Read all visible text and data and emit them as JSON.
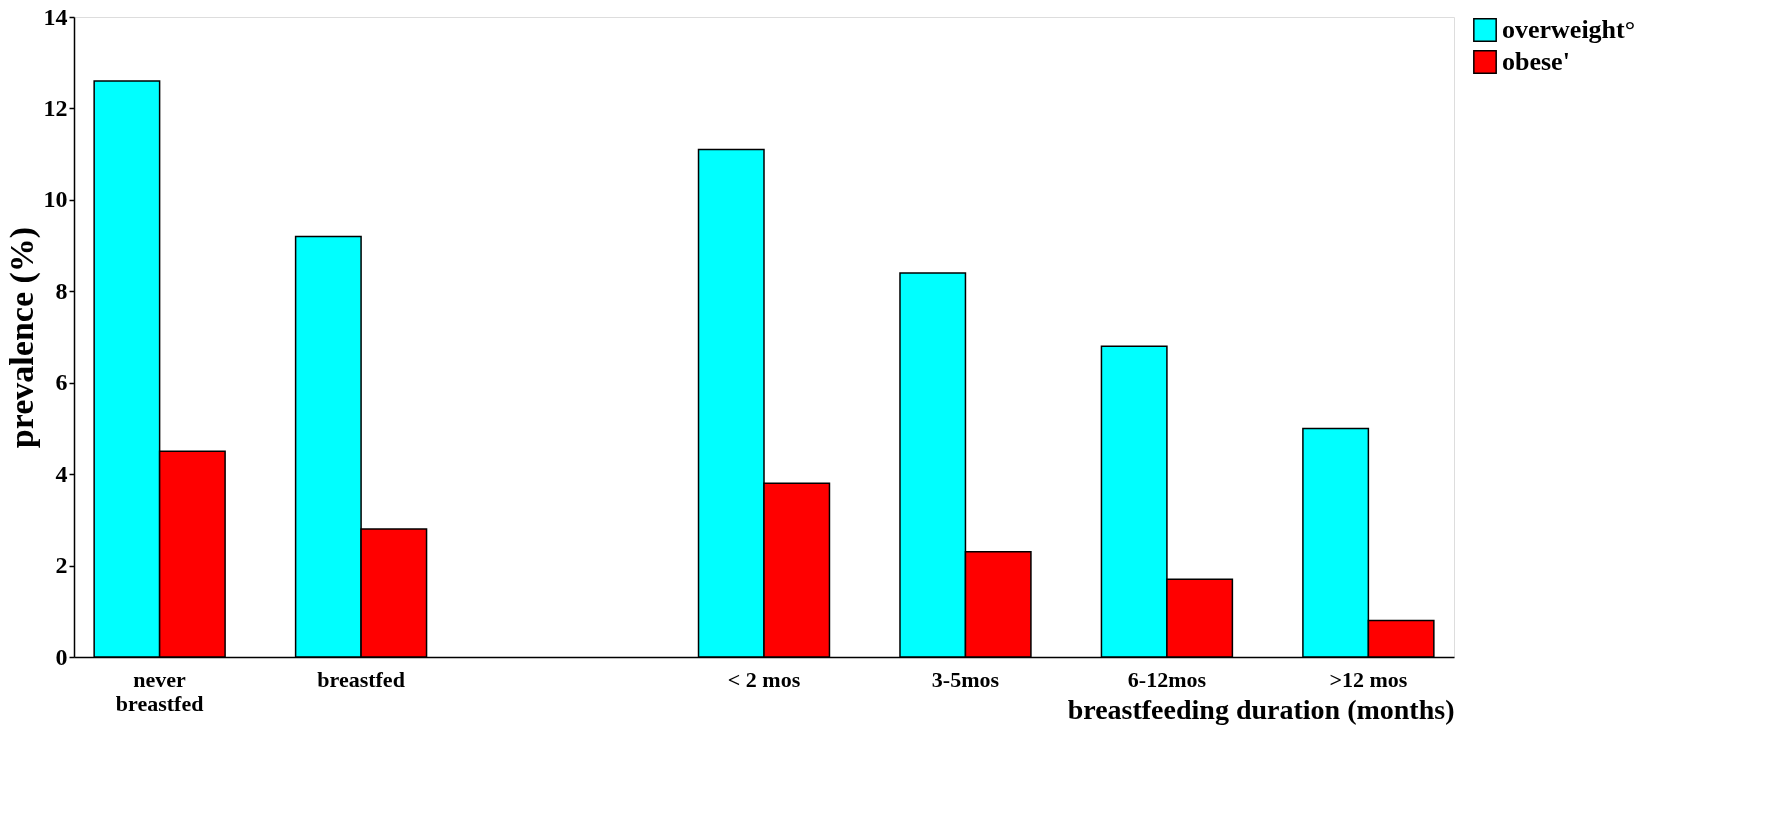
{
  "chart_data": {
    "type": "bar",
    "xlabel": "breastfeeding duration (months)",
    "ylabel": "prevalence (%)",
    "categories": [
      "never breastfed",
      "breastfed",
      null,
      "< 2 mos",
      "3-5mos",
      "6-12mos",
      ">12 mos"
    ],
    "series": [
      {
        "name": "overweight°",
        "color": "#00ffff",
        "values": [
          12.6,
          9.2,
          null,
          11.1,
          8.4,
          6.8,
          5.0
        ]
      },
      {
        "name": "obese'",
        "color": "#ff0000",
        "values": [
          4.5,
          2.8,
          null,
          3.8,
          2.3,
          1.7,
          0.8
        ]
      }
    ],
    "ylim": [
      0,
      14
    ],
    "yticks": [
      0,
      2,
      4,
      6,
      8,
      10,
      12,
      14
    ],
    "grid": false,
    "legend": "right"
  }
}
